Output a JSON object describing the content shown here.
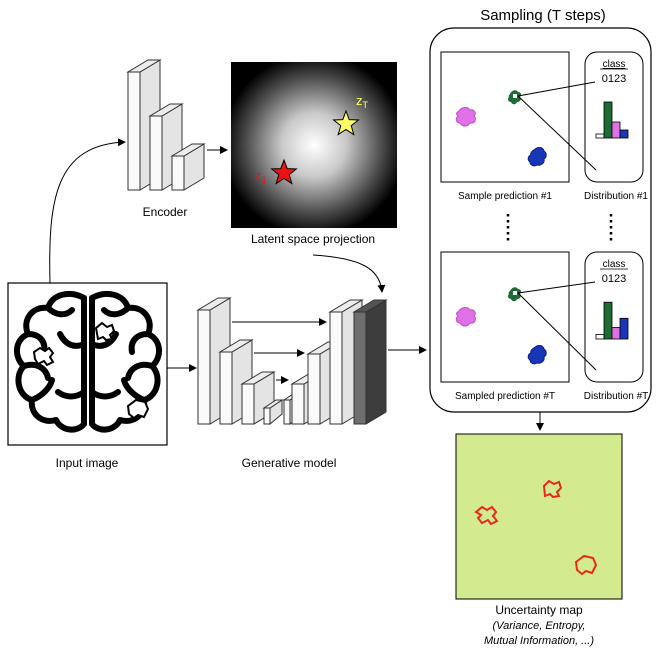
{
  "labels": {
    "encoder": "Encoder",
    "latent": "Latent space projection",
    "input": "Input image",
    "generative": "Generative model",
    "sampling_title": "Sampling (T steps)",
    "sample1": "Sample prediction #1",
    "sampleT": "Sampled prediction #T",
    "dist1": "Distribution #1",
    "distT": "Distribution #T",
    "class_header": "class",
    "class_digits": "0123",
    "uncertainty_title": "Uncertainty map",
    "uncertainty_sub1": "(Variance, Entropy,",
    "uncertainty_sub2": "Mutual Information,  ...)",
    "z1_base": "z",
    "z1_sub": "1",
    "zT_base": "z",
    "zT_sub": "T"
  },
  "colors": {
    "class0": "#ffffff",
    "class1": "#1f6b34",
    "class2": "#e070e6",
    "class3": "#1a36b8",
    "uncertainty_bg": "#d4ea8e",
    "uncertainty_outline": "#e8281d",
    "star_z1": "#ee1111",
    "star_zT": "#ffff66"
  },
  "distributions": [
    {
      "id": "dist1",
      "values": [
        0.1,
        0.9,
        0.4,
        0.2
      ]
    },
    {
      "id": "distT",
      "values": [
        0.1,
        0.8,
        0.25,
        0.45
      ]
    }
  ]
}
